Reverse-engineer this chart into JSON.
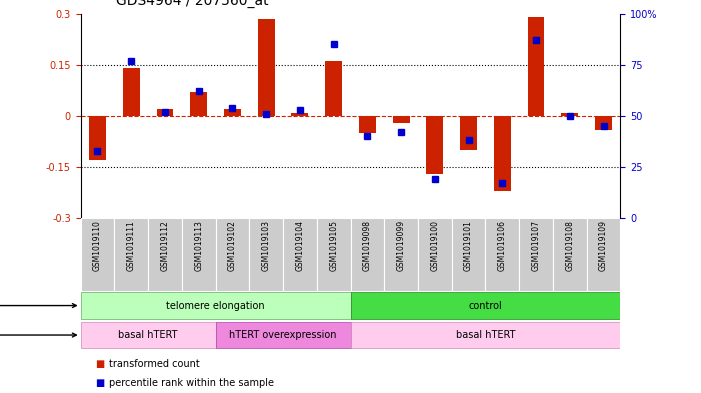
{
  "title": "GDS4964 / 207560_at",
  "samples": [
    "GSM1019110",
    "GSM1019111",
    "GSM1019112",
    "GSM1019113",
    "GSM1019102",
    "GSM1019103",
    "GSM1019104",
    "GSM1019105",
    "GSM1019098",
    "GSM1019099",
    "GSM1019100",
    "GSM1019101",
    "GSM1019106",
    "GSM1019107",
    "GSM1019108",
    "GSM1019109"
  ],
  "red_values": [
    -0.13,
    0.14,
    0.02,
    0.07,
    0.02,
    0.285,
    0.01,
    0.16,
    -0.05,
    -0.02,
    -0.17,
    -0.1,
    -0.22,
    0.29,
    0.01,
    -0.04
  ],
  "blue_values_pct": [
    33,
    77,
    52,
    62,
    54,
    51,
    53,
    85,
    40,
    42,
    19,
    38,
    17,
    87,
    50,
    45
  ],
  "ylim": [
    -0.3,
    0.3
  ],
  "yticks_left": [
    -0.3,
    -0.15,
    0,
    0.15,
    0.3
  ],
  "yticks_right": [
    0,
    25,
    50,
    75,
    100
  ],
  "hline_dotted": [
    0.15,
    -0.15
  ],
  "protocol_telomere": [
    0,
    7
  ],
  "protocol_control": [
    8,
    15
  ],
  "genotype_basal1": [
    0,
    3
  ],
  "genotype_hTERT": [
    4,
    7
  ],
  "genotype_basal2": [
    8,
    15
  ],
  "color_red": "#cc2200",
  "color_blue": "#0000cc",
  "color_green_light": "#bbffbb",
  "color_green_dark": "#44dd44",
  "color_pink_light": "#ffccee",
  "color_pink_dark": "#ee88dd",
  "bar_width": 0.5,
  "blue_marker_size": 5,
  "title_fontsize": 10,
  "tick_fontsize": 7,
  "label_fontsize": 7,
  "row_fontsize": 7
}
